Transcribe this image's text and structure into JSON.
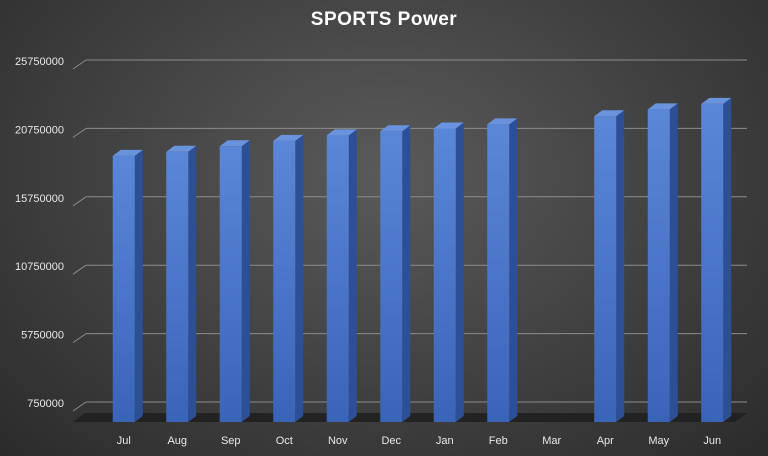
{
  "chart_data": {
    "type": "bar",
    "title": "SPORTS Power",
    "categories": [
      "Jul",
      "Aug",
      "Sep",
      "Oct",
      "Nov",
      "Dec",
      "Jan",
      "Feb",
      "Mar",
      "Apr",
      "May",
      "Jun"
    ],
    "series": [
      {
        "values": [
          19400000,
          19700000,
          20100000,
          20500000,
          20900000,
          21200000,
          21400000,
          21700000,
          null,
          22300000,
          22800000,
          23200000
        ],
        "color": "#4472C4"
      }
    ],
    "y_ticks": [
      "750000",
      "5750000",
      "10750000",
      "15750000",
      "20750000",
      "25750000"
    ],
    "ylim": [
      750000,
      25750000
    ],
    "grid": true,
    "legend": "none"
  }
}
